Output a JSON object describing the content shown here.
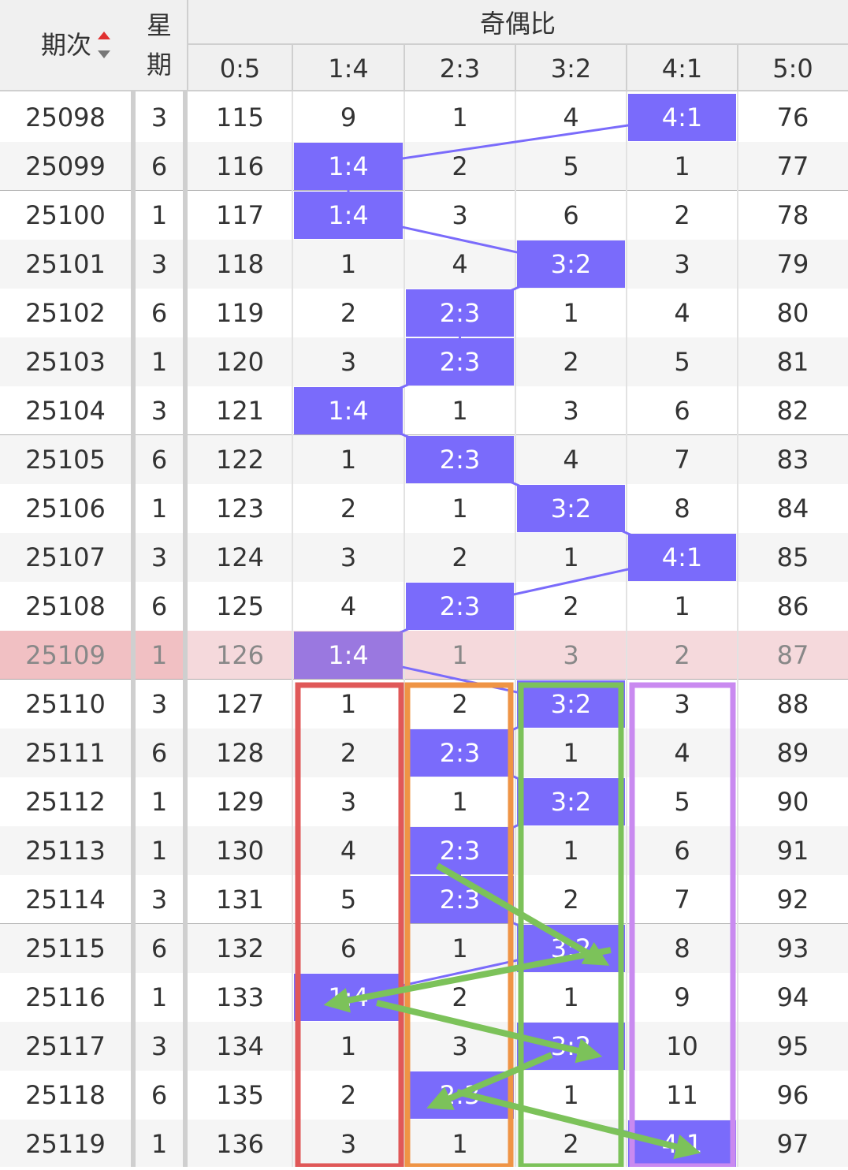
{
  "header": {
    "period": "期次",
    "weekday_top": "星",
    "weekday_bottom": "期",
    "group": "奇偶比",
    "ratios": [
      "0:5",
      "1:4",
      "2:3",
      "3:2",
      "4:1",
      "5:0"
    ]
  },
  "table": {
    "rows": [
      [
        "25098",
        "3",
        "115",
        "9",
        "1",
        "4",
        "4:1",
        "76"
      ],
      [
        "25099",
        "6",
        "116",
        "1:4",
        "2",
        "5",
        "1",
        "77"
      ],
      [
        "25100",
        "1",
        "117",
        "1:4",
        "3",
        "6",
        "2",
        "78"
      ],
      [
        "25101",
        "3",
        "118",
        "1",
        "4",
        "3:2",
        "3",
        "79"
      ],
      [
        "25102",
        "6",
        "119",
        "2",
        "2:3",
        "1",
        "4",
        "80"
      ],
      [
        "25103",
        "1",
        "120",
        "3",
        "2:3",
        "2",
        "5",
        "81"
      ],
      [
        "25104",
        "3",
        "121",
        "1:4",
        "1",
        "3",
        "6",
        "82"
      ],
      [
        "25105",
        "6",
        "122",
        "1",
        "2:3",
        "4",
        "7",
        "83"
      ],
      [
        "25106",
        "1",
        "123",
        "2",
        "1",
        "3:2",
        "8",
        "84"
      ],
      [
        "25107",
        "3",
        "124",
        "3",
        "2",
        "1",
        "4:1",
        "85"
      ],
      [
        "25108",
        "6",
        "125",
        "4",
        "2:3",
        "2",
        "1",
        "86"
      ],
      [
        "25109",
        "1",
        "126",
        "1:4",
        "1",
        "3",
        "2",
        "87"
      ],
      [
        "25110",
        "3",
        "127",
        "1",
        "2",
        "3:2",
        "3",
        "88"
      ],
      [
        "25111",
        "6",
        "128",
        "2",
        "2:3",
        "1",
        "4",
        "89"
      ],
      [
        "25112",
        "1",
        "129",
        "3",
        "1",
        "3:2",
        "5",
        "90"
      ],
      [
        "25113",
        "1",
        "130",
        "4",
        "2:3",
        "1",
        "6",
        "91"
      ],
      [
        "25114",
        "3",
        "131",
        "5",
        "2:3",
        "2",
        "7",
        "92"
      ],
      [
        "25115",
        "6",
        "132",
        "6",
        "1",
        "3:2",
        "8",
        "93"
      ],
      [
        "25116",
        "1",
        "133",
        "1:4",
        "2",
        "1",
        "9",
        "94"
      ],
      [
        "25117",
        "3",
        "134",
        "1",
        "3",
        "3:2",
        "10",
        "95"
      ],
      [
        "25118",
        "6",
        "135",
        "2",
        "2:3",
        "1",
        "11",
        "96"
      ],
      [
        "25119",
        "1",
        "136",
        "3",
        "1",
        "2",
        "4:1",
        "97"
      ]
    ]
  }
}
